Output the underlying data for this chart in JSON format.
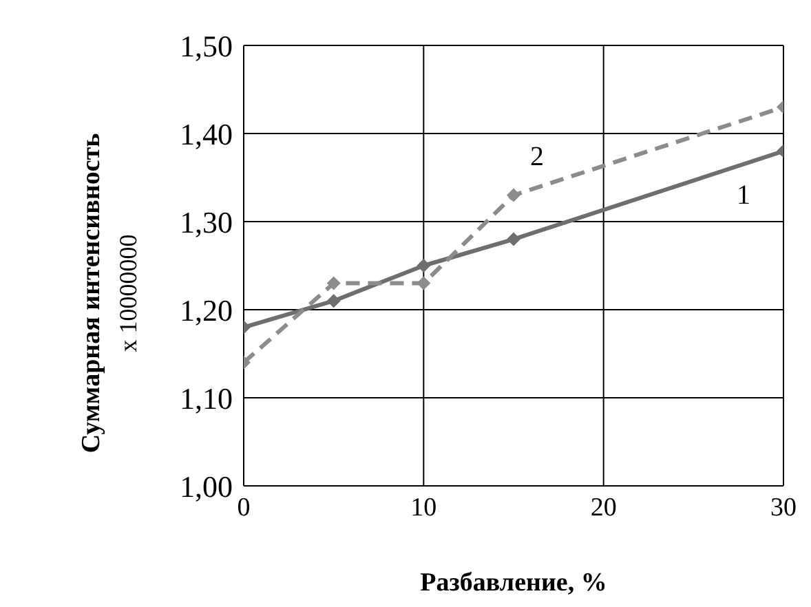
{
  "chart_data": {
    "type": "line",
    "xlabel": "Разбавление, %",
    "ylabel": "Суммарная интенсивность",
    "annotations": [
      "x 10000000"
    ],
    "x": [
      0,
      5,
      10,
      15,
      30
    ],
    "series": [
      {
        "name": "1",
        "color": "#6e6e6e",
        "values": [
          1.18,
          1.21,
          1.25,
          1.28,
          1.38
        ],
        "line_style": "solid"
      },
      {
        "name": "2",
        "color": "#8c8c8c",
        "values": [
          1.14,
          1.23,
          1.23,
          1.33,
          1.43
        ],
        "line_style": "dashed"
      }
    ],
    "xlim": [
      0,
      30
    ],
    "xticks": [
      0,
      10,
      20,
      30
    ],
    "ylim": [
      1,
      1.5
    ],
    "yticks": [
      {
        "value": 1,
        "label": "1,00"
      },
      {
        "value": 1.1,
        "label": "1,10"
      },
      {
        "value": 1.2,
        "label": "1,20"
      },
      {
        "value": 1.3,
        "label": "1,30"
      },
      {
        "value": 1.4,
        "label": "1,40"
      },
      {
        "value": 1.5,
        "label": "1,50"
      }
    ],
    "grid": true,
    "legend": false,
    "marker": "diamond"
  }
}
